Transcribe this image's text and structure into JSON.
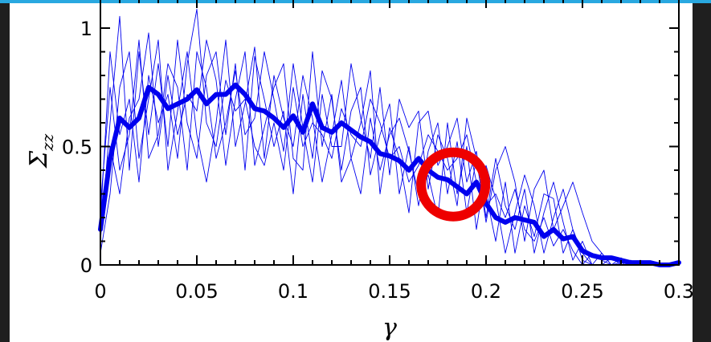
{
  "chart_data": {
    "type": "line",
    "xlabel": "γ",
    "ylabel_main": "Σ",
    "ylabel_sub": "zz",
    "xlim": [
      0,
      0.3
    ],
    "ylim": [
      0,
      1.0
    ],
    "xticks": [
      0,
      0.05,
      0.1,
      0.15,
      0.2,
      0.25,
      0.3
    ],
    "xtick_labels": [
      "0",
      "0.05",
      "0.1",
      "0.15",
      "0.2",
      "0.25",
      "0.3"
    ],
    "yticks": [
      0,
      0.5,
      1
    ],
    "ytick_labels": [
      "0",
      "0.5",
      "1"
    ],
    "grid": false,
    "colors": {
      "series": "#0000ee",
      "highlight": "#ee0000",
      "background": "#ffffff",
      "frame": "#1f1f1f",
      "topbar": "#29a8e0"
    },
    "series": [
      {
        "style": "thick-average",
        "x": [
          0,
          0.005,
          0.01,
          0.015,
          0.02,
          0.025,
          0.03,
          0.035,
          0.04,
          0.045,
          0.05,
          0.055,
          0.06,
          0.065,
          0.07,
          0.075,
          0.08,
          0.085,
          0.09,
          0.095,
          0.1,
          0.105,
          0.11,
          0.115,
          0.12,
          0.125,
          0.13,
          0.135,
          0.14,
          0.145,
          0.15,
          0.155,
          0.16,
          0.165,
          0.17,
          0.175,
          0.18,
          0.185,
          0.19,
          0.195,
          0.2,
          0.205,
          0.21,
          0.215,
          0.22,
          0.225,
          0.23,
          0.235,
          0.24,
          0.245,
          0.25,
          0.255,
          0.26,
          0.265,
          0.27,
          0.275,
          0.28,
          0.285,
          0.29,
          0.295,
          0.3
        ],
        "y": [
          0.15,
          0.45,
          0.62,
          0.58,
          0.62,
          0.75,
          0.72,
          0.66,
          0.68,
          0.7,
          0.74,
          0.68,
          0.72,
          0.72,
          0.76,
          0.72,
          0.66,
          0.65,
          0.62,
          0.58,
          0.63,
          0.56,
          0.68,
          0.58,
          0.56,
          0.6,
          0.57,
          0.54,
          0.52,
          0.47,
          0.46,
          0.44,
          0.4,
          0.45,
          0.4,
          0.37,
          0.36,
          0.33,
          0.3,
          0.35,
          0.26,
          0.2,
          0.18,
          0.2,
          0.19,
          0.18,
          0.12,
          0.15,
          0.11,
          0.12,
          0.06,
          0.04,
          0.03,
          0.03,
          0.02,
          0.01,
          0.01,
          0.01,
          0.0,
          0.0,
          0.01
        ]
      },
      {
        "style": "thin",
        "x": [
          0,
          0.005,
          0.01,
          0.015,
          0.02,
          0.025,
          0.03,
          0.035,
          0.04,
          0.045,
          0.05,
          0.055,
          0.06,
          0.065,
          0.07,
          0.075,
          0.08,
          0.085,
          0.09,
          0.095,
          0.1,
          0.105,
          0.11,
          0.115,
          0.12,
          0.125,
          0.13,
          0.135,
          0.14,
          0.145,
          0.15,
          0.155,
          0.16,
          0.165,
          0.17,
          0.175,
          0.18,
          0.185,
          0.19,
          0.195,
          0.2,
          0.205,
          0.21,
          0.215,
          0.22,
          0.225,
          0.23,
          0.235,
          0.24,
          0.245,
          0.25,
          0.255,
          0.26,
          0.265,
          0.27,
          0.275,
          0.28,
          0.285,
          0.29,
          0.295,
          0.3
        ],
        "y": [
          0.18,
          0.9,
          0.55,
          0.7,
          0.35,
          0.8,
          0.6,
          0.72,
          0.45,
          0.85,
          1.08,
          0.6,
          0.5,
          0.78,
          0.65,
          0.7,
          0.5,
          0.42,
          0.6,
          0.4,
          0.75,
          0.5,
          0.6,
          0.55,
          0.45,
          0.66,
          0.55,
          0.5,
          0.7,
          0.6,
          0.45,
          0.5,
          0.35,
          0.42,
          0.55,
          0.48,
          0.4,
          0.45,
          0.55,
          0.35,
          0.25,
          0.3,
          0.2,
          0.32,
          0.15,
          0.1,
          0.2,
          0.08,
          0.15,
          0.06,
          0.0,
          0.05,
          0.02,
          0.0,
          0.01,
          0.0,
          0.01,
          0.0,
          0.0,
          0.0,
          0.0
        ]
      },
      {
        "style": "thin",
        "x": [
          0,
          0.005,
          0.01,
          0.015,
          0.02,
          0.025,
          0.03,
          0.035,
          0.04,
          0.045,
          0.05,
          0.055,
          0.06,
          0.065,
          0.07,
          0.075,
          0.08,
          0.085,
          0.09,
          0.095,
          0.1,
          0.105,
          0.11,
          0.115,
          0.12,
          0.125,
          0.13,
          0.135,
          0.14,
          0.145,
          0.15,
          0.155,
          0.16,
          0.165,
          0.17,
          0.175,
          0.18,
          0.185,
          0.19,
          0.195,
          0.2,
          0.205,
          0.21,
          0.215,
          0.22,
          0.225,
          0.23,
          0.235,
          0.24,
          0.245,
          0.25,
          0.255,
          0.26,
          0.265,
          0.27,
          0.275,
          0.28,
          0.285,
          0.29,
          0.295,
          0.3
        ],
        "y": [
          0.1,
          0.6,
          1.05,
          0.4,
          0.9,
          0.55,
          0.85,
          0.5,
          0.95,
          0.6,
          0.45,
          0.8,
          0.9,
          0.55,
          0.85,
          0.4,
          0.88,
          0.7,
          0.5,
          0.65,
          0.3,
          0.72,
          0.45,
          0.82,
          0.7,
          0.4,
          0.65,
          0.75,
          0.38,
          0.55,
          0.68,
          0.3,
          0.5,
          0.25,
          0.48,
          0.6,
          0.3,
          0.52,
          0.22,
          0.45,
          0.3,
          0.1,
          0.35,
          0.05,
          0.25,
          0.12,
          0.3,
          0.28,
          0.05,
          0.15,
          0.02,
          0.0,
          0.05,
          0.0,
          0.0,
          0.02,
          0.0,
          0.0,
          0.01,
          0.0,
          0.0
        ]
      },
      {
        "style": "thin",
        "x": [
          0,
          0.005,
          0.01,
          0.015,
          0.02,
          0.025,
          0.03,
          0.035,
          0.04,
          0.045,
          0.05,
          0.055,
          0.06,
          0.065,
          0.07,
          0.075,
          0.08,
          0.085,
          0.09,
          0.095,
          0.1,
          0.105,
          0.11,
          0.115,
          0.12,
          0.125,
          0.13,
          0.135,
          0.14,
          0.145,
          0.15,
          0.155,
          0.16,
          0.165,
          0.17,
          0.175,
          0.18,
          0.185,
          0.19,
          0.195,
          0.2,
          0.205,
          0.21,
          0.215,
          0.22,
          0.225,
          0.23,
          0.235,
          0.24,
          0.245,
          0.25,
          0.255,
          0.26,
          0.265,
          0.27,
          0.275,
          0.28,
          0.285,
          0.29,
          0.295,
          0.3
        ],
        "y": [
          0.05,
          0.3,
          0.75,
          0.9,
          0.45,
          0.7,
          0.95,
          0.4,
          0.65,
          0.9,
          0.55,
          0.35,
          0.6,
          0.95,
          0.5,
          0.68,
          0.92,
          0.45,
          0.8,
          0.62,
          0.5,
          0.8,
          0.62,
          0.35,
          0.55,
          0.78,
          0.45,
          0.3,
          0.62,
          0.4,
          0.55,
          0.62,
          0.48,
          0.3,
          0.38,
          0.2,
          0.6,
          0.3,
          0.5,
          0.15,
          0.42,
          0.28,
          0.05,
          0.22,
          0.38,
          0.25,
          0.05,
          0.2,
          0.32,
          0.15,
          0.05,
          0.0,
          0.0,
          0.03,
          0.0,
          0.0,
          0.02,
          0.0,
          0.0,
          0.0,
          0.0
        ]
      },
      {
        "style": "thin",
        "x": [
          0,
          0.005,
          0.01,
          0.015,
          0.02,
          0.025,
          0.03,
          0.035,
          0.04,
          0.045,
          0.05,
          0.055,
          0.06,
          0.065,
          0.07,
          0.075,
          0.08,
          0.085,
          0.09,
          0.095,
          0.1,
          0.105,
          0.11,
          0.115,
          0.12,
          0.125,
          0.13,
          0.135,
          0.14,
          0.145,
          0.15,
          0.155,
          0.16,
          0.165,
          0.17,
          0.175,
          0.18,
          0.185,
          0.19,
          0.195,
          0.2,
          0.205,
          0.21,
          0.215,
          0.22,
          0.225,
          0.23,
          0.235,
          0.24,
          0.245,
          0.25,
          0.255,
          0.26,
          0.265,
          0.27,
          0.275,
          0.28,
          0.285,
          0.29,
          0.295,
          0.3
        ],
        "y": [
          0.25,
          0.75,
          0.4,
          0.55,
          0.95,
          0.45,
          0.55,
          0.85,
          0.75,
          0.4,
          0.9,
          0.75,
          0.45,
          0.6,
          0.82,
          0.55,
          0.62,
          0.9,
          0.7,
          0.48,
          0.85,
          0.58,
          0.35,
          0.72,
          0.5,
          0.5,
          0.85,
          0.62,
          0.45,
          0.75,
          0.38,
          0.7,
          0.58,
          0.65,
          0.32,
          0.55,
          0.45,
          0.25,
          0.62,
          0.45,
          0.18,
          0.4,
          0.5,
          0.35,
          0.1,
          0.32,
          0.4,
          0.15,
          0.25,
          0.35,
          0.22,
          0.1,
          0.05,
          0.0,
          0.03,
          0.0,
          0.0,
          0.01,
          0.0,
          0.0,
          0.0
        ]
      },
      {
        "style": "thin",
        "x": [
          0,
          0.005,
          0.01,
          0.015,
          0.02,
          0.025,
          0.03,
          0.035,
          0.04,
          0.045,
          0.05,
          0.055,
          0.06,
          0.065,
          0.07,
          0.075,
          0.08,
          0.085,
          0.09,
          0.095,
          0.1,
          0.105,
          0.11,
          0.115,
          0.12,
          0.125,
          0.13,
          0.135,
          0.14,
          0.145,
          0.15,
          0.155,
          0.16,
          0.165,
          0.17,
          0.175,
          0.18,
          0.185,
          0.19,
          0.195,
          0.2,
          0.205,
          0.21,
          0.215,
          0.22,
          0.225,
          0.23,
          0.235,
          0.24,
          0.245,
          0.25,
          0.255,
          0.26,
          0.265,
          0.27,
          0.275,
          0.28,
          0.285,
          0.29,
          0.295,
          0.3
        ],
        "y": [
          0.12,
          0.5,
          0.3,
          0.62,
          0.7,
          0.98,
          0.5,
          0.8,
          0.55,
          0.72,
          0.65,
          0.95,
          0.78,
          0.42,
          0.7,
          0.9,
          0.42,
          0.58,
          0.75,
          0.85,
          0.45,
          0.4,
          0.9,
          0.5,
          0.72,
          0.35,
          0.45,
          0.6,
          0.82,
          0.3,
          0.58,
          0.45,
          0.22,
          0.6,
          0.65,
          0.42,
          0.5,
          0.62,
          0.35,
          0.48,
          0.2,
          0.45,
          0.25,
          0.15,
          0.32,
          0.05,
          0.22,
          0.35,
          0.18,
          0.02,
          0.1,
          0.0,
          0.0,
          0.0,
          0.0,
          0.0,
          0.0,
          0.0,
          0.0,
          0.0,
          0.0
        ]
      }
    ],
    "annotation": {
      "shape": "circle",
      "x": 0.183,
      "y": 0.34,
      "color": "#ee0000"
    }
  }
}
